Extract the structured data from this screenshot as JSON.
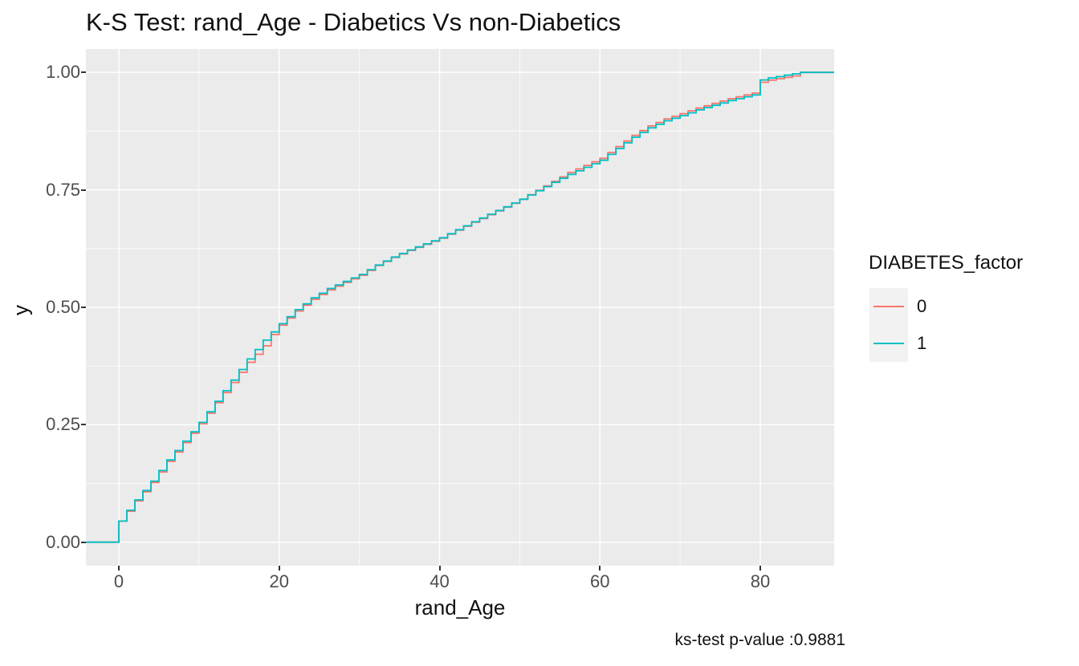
{
  "figure": {
    "title": "K-S Test: rand_Age - Diabetics Vs non-Diabetics",
    "caption": "ks-test p-value :0.9881",
    "x_axis": {
      "label": "rand_Age"
    },
    "y_axis": {
      "label": "y"
    },
    "legend": {
      "title": "DIABETES_factor",
      "entries": [
        {
          "label": "0",
          "color": "#F8766D"
        },
        {
          "label": "1",
          "color": "#00BFC4"
        }
      ]
    }
  },
  "colors": {
    "panel_background": "#EBEBEB",
    "grid_major": "#FFFFFF",
    "grid_minor": "#FFFFFF",
    "tick_label": "#4D4D4D",
    "tick_mark": "#333333",
    "legend_key_background": "#F2F2F2",
    "series_0": "#F8766D",
    "series_1": "#00BFC4"
  },
  "chart_data": {
    "type": "line",
    "subtype": "ecdf_step",
    "title": "K-S Test: rand_Age - Diabetics Vs non-Diabetics",
    "xlabel": "rand_Age",
    "ylabel": "y",
    "caption": "ks-test p-value :0.9881",
    "xlim_data": [
      0,
      85
    ],
    "ylim_data": [
      0,
      1
    ],
    "expansion": 0.05,
    "grid": true,
    "legend_position": "right",
    "x_ticks": {
      "values": [
        0,
        20,
        40,
        60,
        80
      ],
      "labels": [
        "0",
        "20",
        "40",
        "60",
        "80"
      ]
    },
    "y_ticks": {
      "values": [
        0,
        0.25,
        0.5,
        0.75,
        1
      ],
      "labels": [
        "0.00",
        "0.25",
        "0.50",
        "0.75",
        "1.00"
      ]
    },
    "x_minor": [
      10,
      30,
      50,
      70
    ],
    "y_minor": [
      0.125,
      0.375,
      0.625,
      0.875
    ],
    "ks_test_p_value": 0.9881,
    "series": [
      {
        "name": "0",
        "color": "#F8766D",
        "anchors": [
          [
            0,
            0.045
          ],
          [
            1,
            0.066
          ],
          [
            2,
            0.088
          ],
          [
            4,
            0.127
          ],
          [
            6,
            0.172
          ],
          [
            8,
            0.212
          ],
          [
            10,
            0.252
          ],
          [
            12,
            0.297
          ],
          [
            14,
            0.34
          ],
          [
            16,
            0.383
          ],
          [
            17,
            0.4
          ],
          [
            18,
            0.418
          ],
          [
            19,
            0.442
          ],
          [
            20,
            0.462
          ],
          [
            22,
            0.492
          ],
          [
            24,
            0.517
          ],
          [
            26,
            0.537
          ],
          [
            28,
            0.553
          ],
          [
            30,
            0.568
          ],
          [
            32,
            0.589
          ],
          [
            34,
            0.606
          ],
          [
            36,
            0.621
          ],
          [
            38,
            0.634
          ],
          [
            40,
            0.647
          ],
          [
            42,
            0.664
          ],
          [
            44,
            0.681
          ],
          [
            46,
            0.697
          ],
          [
            48,
            0.713
          ],
          [
            50,
            0.73
          ],
          [
            52,
            0.749
          ],
          [
            54,
            0.768
          ],
          [
            56,
            0.787
          ],
          [
            58,
            0.802
          ],
          [
            60,
            0.817
          ],
          [
            62,
            0.842
          ],
          [
            64,
            0.866
          ],
          [
            66,
            0.886
          ],
          [
            68,
            0.901
          ],
          [
            70,
            0.912
          ],
          [
            72,
            0.924
          ],
          [
            74,
            0.934
          ],
          [
            76,
            0.944
          ],
          [
            78,
            0.952
          ],
          [
            79,
            0.956
          ],
          [
            80,
            0.979
          ],
          [
            81,
            0.9835
          ],
          [
            82,
            0.9865
          ],
          [
            83,
            0.9895
          ],
          [
            84,
            0.9925
          ],
          [
            85,
            1.0
          ]
        ]
      },
      {
        "name": "1",
        "color": "#00BFC4",
        "anchors": [
          [
            0,
            0.045
          ],
          [
            1,
            0.068
          ],
          [
            2,
            0.09
          ],
          [
            4,
            0.13
          ],
          [
            6,
            0.175
          ],
          [
            8,
            0.215
          ],
          [
            10,
            0.255
          ],
          [
            12,
            0.3
          ],
          [
            14,
            0.345
          ],
          [
            16,
            0.39
          ],
          [
            18,
            0.43
          ],
          [
            20,
            0.465
          ],
          [
            22,
            0.495
          ],
          [
            24,
            0.52
          ],
          [
            26,
            0.54
          ],
          [
            28,
            0.555
          ],
          [
            30,
            0.57
          ],
          [
            32,
            0.59
          ],
          [
            34,
            0.607
          ],
          [
            36,
            0.622
          ],
          [
            38,
            0.635
          ],
          [
            40,
            0.648
          ],
          [
            42,
            0.665
          ],
          [
            44,
            0.682
          ],
          [
            46,
            0.698
          ],
          [
            48,
            0.714
          ],
          [
            50,
            0.73
          ],
          [
            52,
            0.748
          ],
          [
            54,
            0.766
          ],
          [
            56,
            0.783
          ],
          [
            58,
            0.798
          ],
          [
            60,
            0.813
          ],
          [
            62,
            0.838
          ],
          [
            64,
            0.862
          ],
          [
            66,
            0.882
          ],
          [
            68,
            0.897
          ],
          [
            70,
            0.908
          ],
          [
            72,
            0.92
          ],
          [
            74,
            0.93
          ],
          [
            76,
            0.94
          ],
          [
            78,
            0.948
          ],
          [
            79,
            0.952
          ],
          [
            80,
            0.984
          ],
          [
            81,
            0.988
          ],
          [
            82,
            0.991
          ],
          [
            83,
            0.994
          ],
          [
            84,
            0.997
          ],
          [
            85,
            1.0
          ]
        ]
      }
    ]
  }
}
